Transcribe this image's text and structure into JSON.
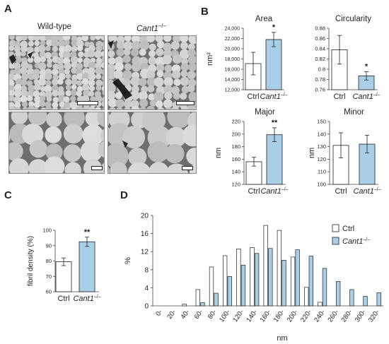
{
  "panels": {
    "A": "A",
    "B": "B",
    "C": "C",
    "D": "D"
  },
  "panel_a": {
    "col_labels": [
      "Wild-type",
      "Cant1"
    ],
    "superscript": "–/–",
    "images": [
      {
        "genotype": "Wild-type",
        "magnification": "low"
      },
      {
        "genotype": "Cant1–/–",
        "magnification": "low"
      },
      {
        "genotype": "Wild-type",
        "magnification": "high"
      },
      {
        "genotype": "Cant1–/–",
        "magnification": "high"
      }
    ]
  },
  "colors": {
    "ctrl": "#ffffff",
    "cant1": "#a9cfe8",
    "stroke": "#222222"
  },
  "chart_data": [
    {
      "id": "area",
      "type": "bar",
      "title": "Area",
      "ylabel": "nm²",
      "categories": [
        "Ctrl",
        "Cant1–/–"
      ],
      "values": [
        17100,
        21800
      ],
      "errors": [
        2200,
        1400
      ],
      "ylim": [
        12000,
        24000
      ],
      "yticks": [
        "12,000",
        "14,000",
        "16,000",
        "18,000",
        "20,000",
        "22,000",
        "24,000"
      ],
      "sig": [
        "",
        "*"
      ]
    },
    {
      "id": "circularity",
      "type": "bar",
      "title": "Circularity",
      "ylabel": "",
      "categories": [
        "Ctrl",
        "Cant1–/–"
      ],
      "values": [
        0.838,
        0.787
      ],
      "errors": [
        0.028,
        0.008
      ],
      "ylim": [
        0.76,
        0.88
      ],
      "yticks": [
        "0.76",
        "0.78",
        "0.8",
        "0.82",
        "0.84",
        "0.86",
        "0.88"
      ],
      "sig": [
        "",
        "*"
      ]
    },
    {
      "id": "major",
      "type": "bar",
      "title": "Major",
      "ylabel": "nm",
      "categories": [
        "Ctrl",
        "Cant1–/–"
      ],
      "values": [
        156,
        199
      ],
      "errors": [
        7,
        11
      ],
      "ylim": [
        120,
        220
      ],
      "yticks": [
        "120",
        "140",
        "160",
        "180",
        "200",
        "220"
      ],
      "sig": [
        "",
        "**"
      ]
    },
    {
      "id": "minor",
      "type": "bar",
      "title": "Minor",
      "ylabel": "nm",
      "categories": [
        "Ctrl",
        "Cant1–/–"
      ],
      "values": [
        131,
        132
      ],
      "errors": [
        10,
        7
      ],
      "ylim": [
        100,
        150
      ],
      "yticks": [
        "100",
        "110",
        "120",
        "130",
        "140",
        "150"
      ],
      "sig": [
        "",
        ""
      ]
    },
    {
      "id": "fibril-density",
      "type": "bar",
      "title": "",
      "ylabel": "fibril density (%)",
      "categories": [
        "Ctrl",
        "Cant1–/–"
      ],
      "values": [
        79.5,
        92.5
      ],
      "errors": [
        2.5,
        3
      ],
      "ylim": [
        60,
        100
      ],
      "yticks": [
        "60",
        "70",
        "80",
        "90",
        "100"
      ],
      "sig": [
        "",
        "**"
      ]
    },
    {
      "id": "histogram",
      "type": "bar",
      "title": "",
      "xlabel": "nm",
      "ylabel": "%",
      "categories": [
        "0-",
        "20-",
        "40-",
        "60-",
        "80-",
        "100-",
        "120-",
        "140-",
        "160-",
        "180-",
        "200-",
        "220-",
        "240-",
        "260-",
        "280-",
        "300-",
        "320-"
      ],
      "series": [
        {
          "name": "Ctrl",
          "values": [
            0,
            0,
            0.4,
            3.6,
            8.6,
            11.1,
            12.6,
            12.9,
            17.8,
            16.7,
            10.8,
            4.1,
            0.8,
            0,
            0,
            0,
            0
          ]
        },
        {
          "name": "Cant1–/–",
          "values": [
            0,
            0,
            0,
            0.7,
            2.8,
            6.5,
            9.0,
            11.6,
            12.7,
            10.1,
            12.4,
            11.0,
            8.3,
            5.4,
            3.6,
            2.1,
            2.9
          ]
        }
      ],
      "ylim": [
        0,
        20
      ],
      "yticks": [
        "0",
        "4",
        "8",
        "12",
        "16",
        "20"
      ],
      "legend": "top-right"
    }
  ]
}
